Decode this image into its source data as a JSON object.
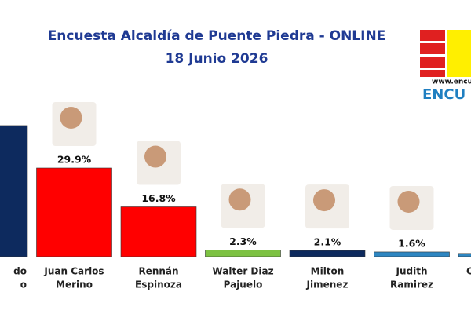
{
  "chart_data": {
    "type": "bar",
    "title": "Encuesta Alcaldía de Puente Piedra - ONLINE",
    "subtitle": "18 Junio 2026",
    "categories": [
      [
        "do",
        "o"
      ],
      [
        "Juan Carlos",
        "Merino"
      ],
      [
        "Rennán",
        "Espinoza"
      ],
      [
        "Walter Diaz",
        "Pajuelo"
      ],
      [
        "Milton",
        "Jimenez"
      ],
      [
        "Judith",
        "Ramirez"
      ],
      [
        "C"
      ]
    ],
    "values": [
      44.2,
      29.9,
      16.8,
      2.3,
      2.1,
      1.6,
      1.1
    ],
    "value_labels": [
      null,
      "29.9%",
      "16.8%",
      "2.3%",
      "2.1%",
      "1.6%",
      null
    ],
    "colors": [
      "#0d2a5e",
      "#ff0000",
      "#ff0000",
      "#7dc242",
      "#0d2a5e",
      "#2e86c1",
      "#2e86c1"
    ],
    "logo": {
      "url": "www.encue",
      "name": "ENCU"
    }
  }
}
